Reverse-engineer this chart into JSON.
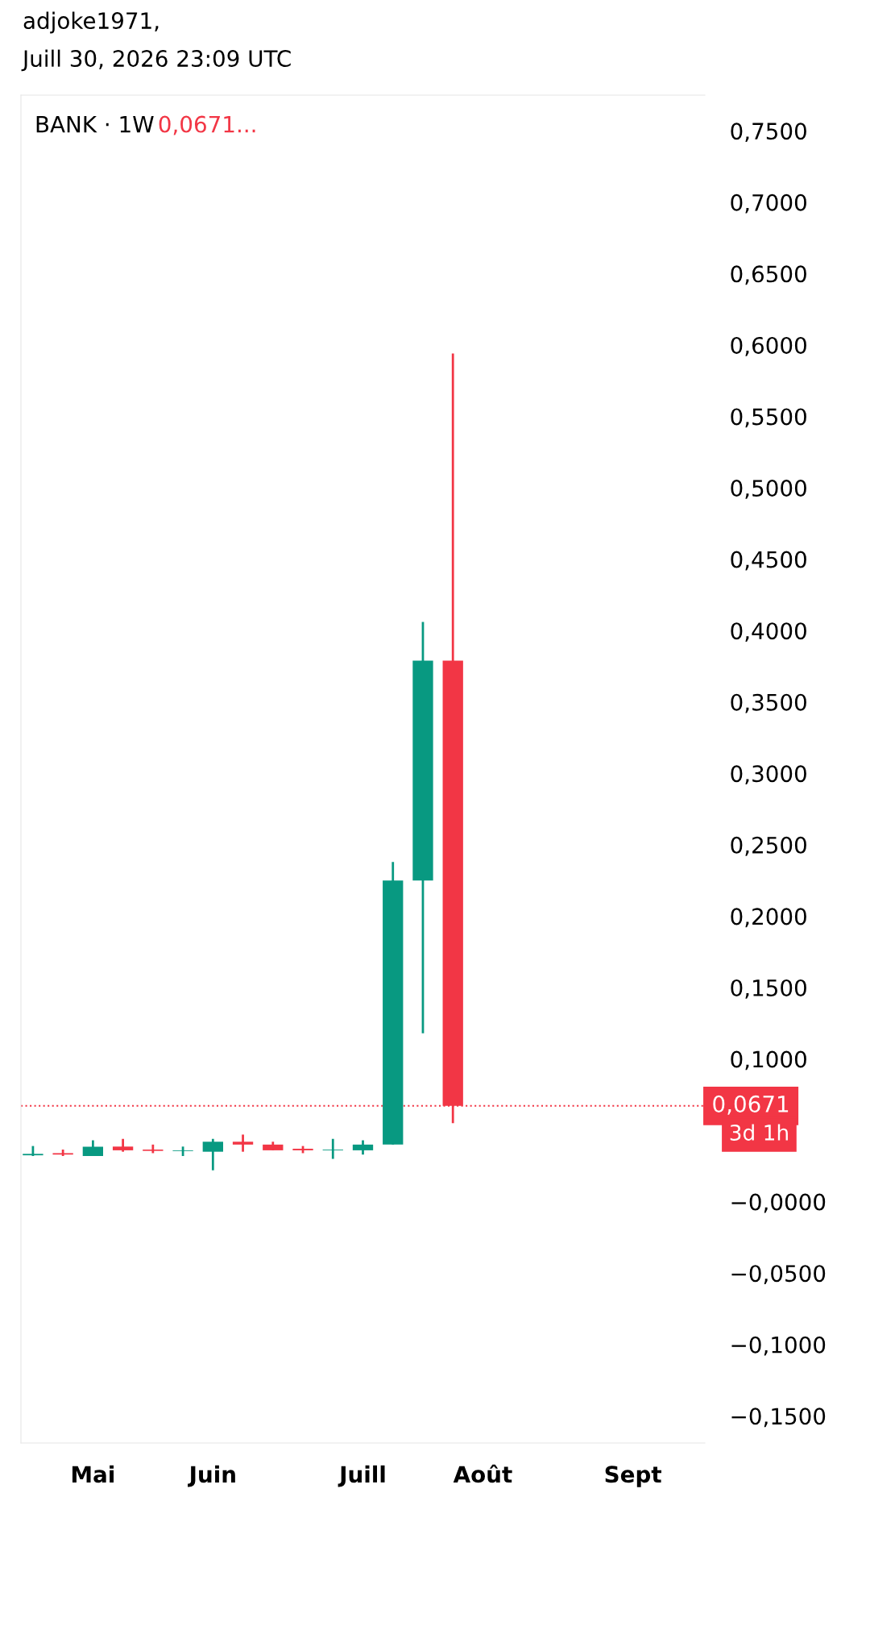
{
  "chart_data": {
    "type": "candlestick",
    "title": "BANK · 1W",
    "subtitle": "0,0671...",
    "annotations": [
      "adjoke1971,",
      "Juill 30, 2026 23:09 UTC",
      "3d 1h"
    ],
    "categories": [
      null,
      null,
      "Mai",
      null,
      null,
      null,
      "Juin",
      null,
      null,
      null,
      null,
      "Juill",
      null,
      null,
      null,
      "Août",
      null,
      null,
      null,
      null,
      "Sept",
      null,
      null
    ],
    "ohlc": [
      [
        0.0325,
        0.039,
        0.032,
        0.0335
      ],
      [
        0.034,
        0.0365,
        0.032,
        0.033
      ],
      [
        0.032,
        0.043,
        0.032,
        0.0385
      ],
      [
        0.0386,
        0.044,
        0.035,
        0.036
      ],
      [
        0.0365,
        0.04,
        0.034,
        0.0356
      ],
      [
        0.0355,
        0.0386,
        0.032,
        0.036
      ],
      [
        0.035,
        0.044,
        0.022,
        0.042
      ],
      [
        0.042,
        0.047,
        0.035,
        0.04
      ],
      [
        0.04,
        0.042,
        0.036,
        0.036
      ],
      [
        0.0371,
        0.039,
        0.034,
        0.036
      ],
      [
        0.036,
        0.044,
        0.03,
        0.0365
      ],
      [
        0.036,
        0.043,
        0.033,
        0.04
      ],
      [
        0.04,
        0.238,
        0.04,
        0.225
      ],
      [
        0.225,
        0.406,
        0.118,
        0.379
      ],
      [
        0.379,
        0.594,
        0.055,
        0.0671
      ],
      null,
      null,
      null,
      null,
      null,
      null,
      null,
      null
    ],
    "colors": [
      "#089981",
      "#f23645",
      "#089981",
      "#f23645",
      "#f23645",
      "#089981",
      "#089981",
      "#f23645",
      "#f23645",
      "#f23645",
      "#089981",
      "#089981",
      "#089981",
      "#089981",
      "#f23645",
      null,
      null,
      null,
      null,
      null,
      null,
      null,
      null
    ],
    "ylim": [
      -0.169,
      0.775
    ],
    "yticks": [
      {
        "value": 0.75,
        "label": "0,7500"
      },
      {
        "value": 0.7,
        "label": "0,7000"
      },
      {
        "value": 0.65,
        "label": "0,6500"
      },
      {
        "value": 0.6,
        "label": "0,6000"
      },
      {
        "value": 0.55,
        "label": "0,5500"
      },
      {
        "value": 0.5,
        "label": "0,5000"
      },
      {
        "value": 0.45,
        "label": "0,4500"
      },
      {
        "value": 0.4,
        "label": "0,4000"
      },
      {
        "value": 0.35,
        "label": "0,3500"
      },
      {
        "value": 0.3,
        "label": "0,3000"
      },
      {
        "value": 0.25,
        "label": "0,2500"
      },
      {
        "value": 0.2,
        "label": "0,2000"
      },
      {
        "value": 0.15,
        "label": "0,1500"
      },
      {
        "value": 0.1,
        "label": "0,1000"
      },
      {
        "value": 0,
        "label": "−0,0000"
      },
      {
        "value": -0.05,
        "label": "−0,0500"
      },
      {
        "value": -0.1,
        "label": "−0,1000"
      },
      {
        "value": -0.15,
        "label": "−0,1500"
      }
    ],
    "ref_lines": [
      {
        "axis": "y",
        "value": 0.0671,
        "label": "0,0671",
        "color": "#f23645",
        "line_style": "dotted"
      }
    ],
    "grid": false
  }
}
